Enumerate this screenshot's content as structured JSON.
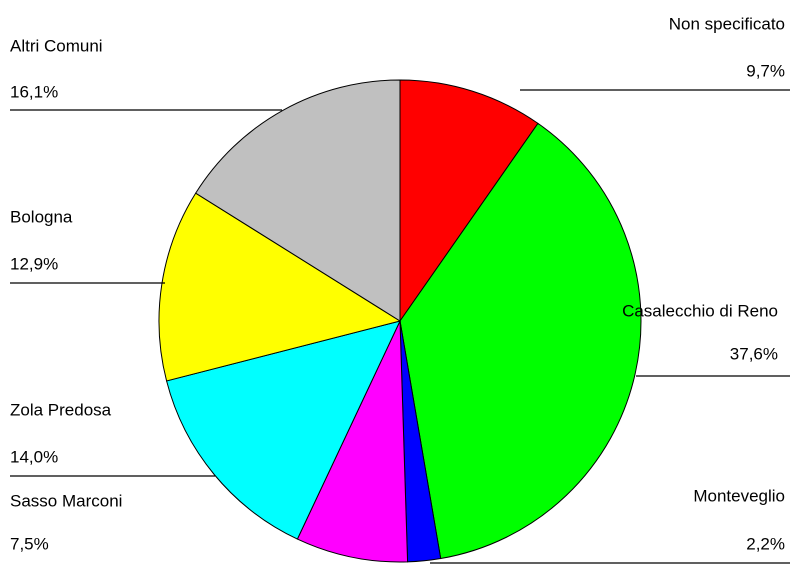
{
  "chart_data": {
    "type": "pie",
    "categories": [
      "Non specificato",
      "Casalecchio di Reno",
      "Monteveglio",
      "Sasso Marconi",
      "Zola Predosa",
      "Bologna",
      "Altri Comuni"
    ],
    "values": [
      9.7,
      37.6,
      2.2,
      7.5,
      14.0,
      12.9,
      16.1
    ],
    "value_labels": [
      "9,7%",
      "37,6%",
      "2,2%",
      "7,5%",
      "14,0%",
      "12,9%",
      "16,1%"
    ],
    "colors": [
      "#ff0000",
      "#00ff00",
      "#0000ff",
      "#ff00ff",
      "#00ffff",
      "#ffff00",
      "#c0c0c0"
    ]
  }
}
